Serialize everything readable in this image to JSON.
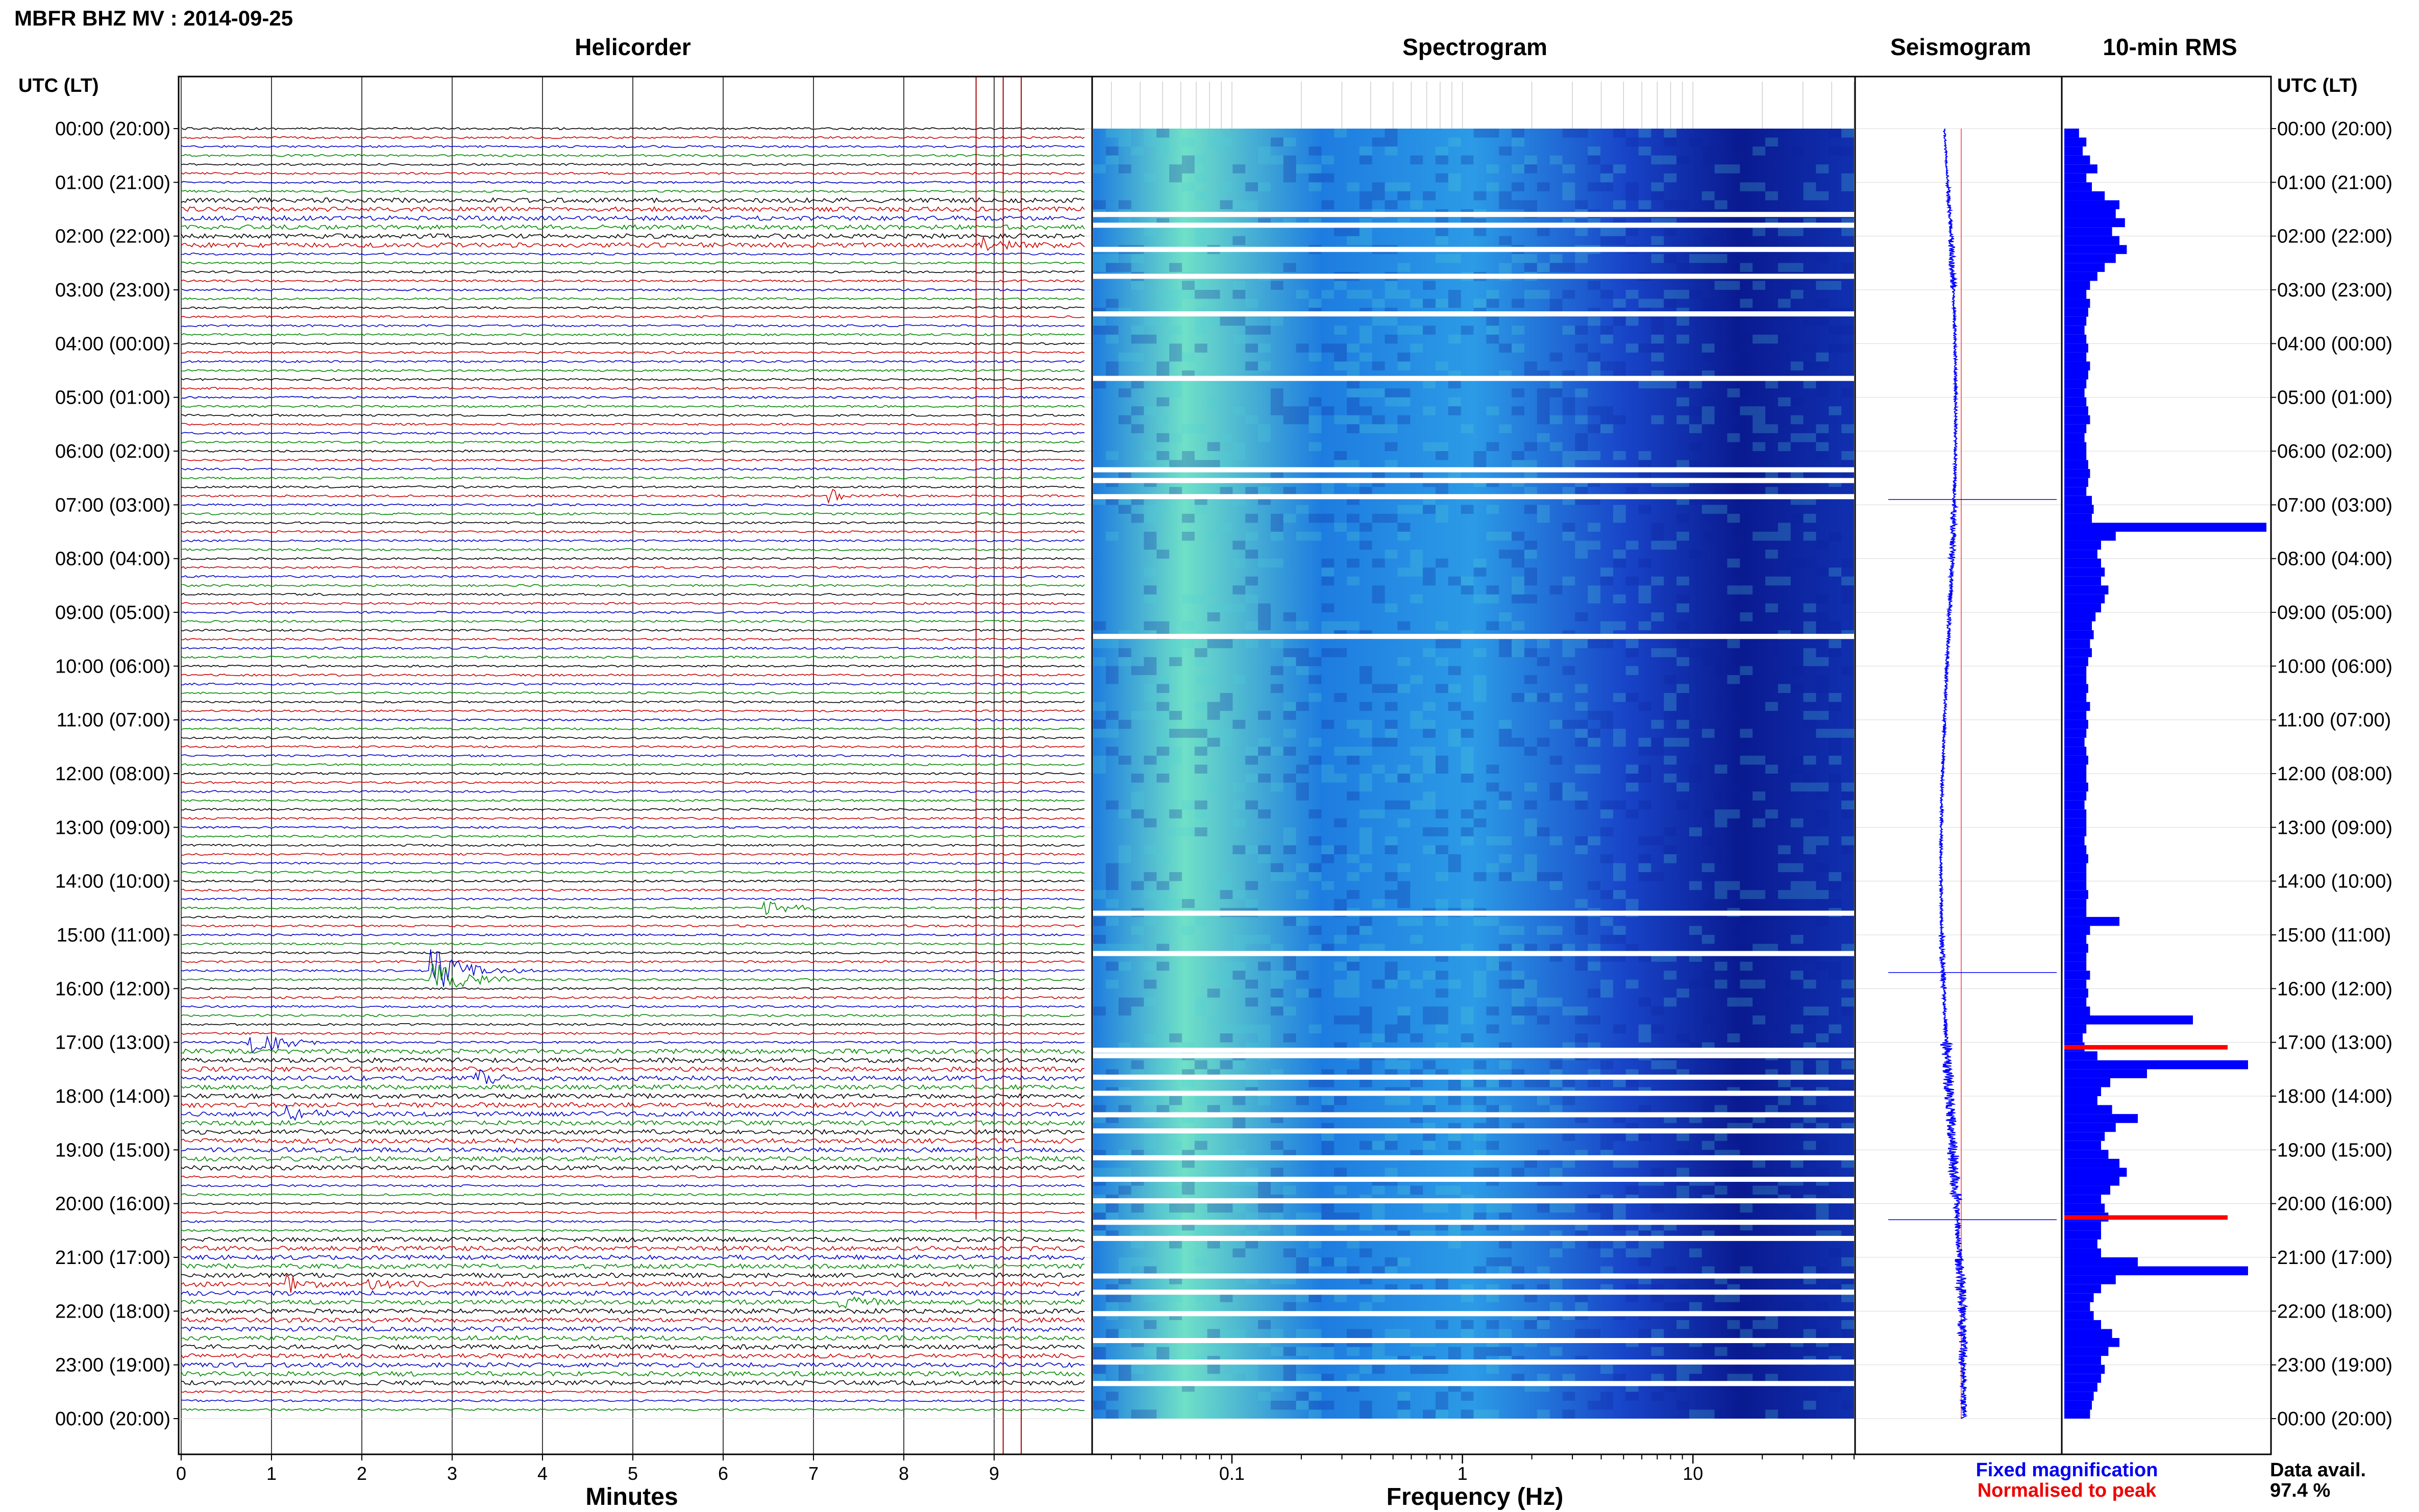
{
  "header": {
    "station_title": "MBFR BHZ MV : 2014-09-25"
  },
  "panels": {
    "helicorder": {
      "title": "Helicorder",
      "xlabel": "Minutes"
    },
    "spectrogram": {
      "title": "Spectrogram",
      "xlabel": "Frequency (Hz)"
    },
    "seismogram": {
      "title": "Seismogram"
    },
    "rms": {
      "title": "10-min RMS"
    }
  },
  "axis": {
    "left_header": "UTC (LT)",
    "right_header": "UTC (LT)",
    "time_labels": [
      "00:00 (20:00)",
      "01:00 (21:00)",
      "02:00 (22:00)",
      "03:00 (23:00)",
      "04:00 (00:00)",
      "05:00 (01:00)",
      "06:00 (02:00)",
      "07:00 (03:00)",
      "08:00 (04:00)",
      "09:00 (05:00)",
      "10:00 (06:00)",
      "11:00 (07:00)",
      "12:00 (08:00)",
      "13:00 (09:00)",
      "14:00 (10:00)",
      "15:00 (11:00)",
      "16:00 (12:00)",
      "17:00 (13:00)",
      "18:00 (14:00)",
      "19:00 (15:00)",
      "20:00 (16:00)",
      "21:00 (17:00)",
      "22:00 (18:00)",
      "23:00 (19:00)",
      "00:00 (20:00)"
    ]
  },
  "legend": {
    "fixed": "Fixed magnification",
    "normalised": "Normalised to peak",
    "fixed_color": "#0000ee",
    "normalised_color": "#ee0000"
  },
  "availability": {
    "label": "Data avail.",
    "value": "97.4 %"
  },
  "colors": {
    "trace_cycle": [
      "#000000",
      "#cc0000",
      "#0000cc",
      "#008800"
    ],
    "rms_bar": "#0000ff",
    "rms_peak": "#ff0000",
    "seismogram": "#0000ff",
    "seismogram_ref": "#ff6666",
    "spec_low": "#0a1a90",
    "spec_mid": "#1e7ce0",
    "spec_high": "#6fe0c8"
  },
  "chart_data": [
    {
      "type": "line",
      "name": "helicorder",
      "x_ticks": [
        0,
        1,
        2,
        3,
        4,
        5,
        6,
        7,
        8,
        9
      ],
      "xlim": [
        0,
        10
      ],
      "traces_per_hour": 6,
      "hours": 24,
      "events": [
        {
          "hour_offset": 2.12,
          "minute": 8.9,
          "amplitude": 1.5
        },
        {
          "hour_offset": 6.9,
          "minute": 7.2,
          "amplitude": 1.2
        },
        {
          "hour_offset": 14.45,
          "minute": 6.5,
          "amplitude": 1.4
        },
        {
          "hour_offset": 15.75,
          "minute": 2.8,
          "amplitude": 4.5
        },
        {
          "hour_offset": 17.05,
          "minute": 0.75,
          "amplitude": 3.5
        },
        {
          "hour_offset": 17.7,
          "minute": 3.3,
          "amplitude": 1.6
        },
        {
          "hour_offset": 18.4,
          "minute": 1.2,
          "amplitude": 1.4
        },
        {
          "hour_offset": 21.5,
          "minute": 1.2,
          "amplitude": 1.5
        },
        {
          "hour_offset": 21.5,
          "minute": 2.1,
          "amplitude": 1.5
        },
        {
          "hour_offset": 21.9,
          "minute": 7.3,
          "amplitude": 1.5
        }
      ],
      "markers_minute": [
        8.8,
        9.1,
        9.3
      ]
    },
    {
      "type": "heatmap",
      "name": "spectrogram",
      "x_scale": "log",
      "xlim": [
        0.025,
        50
      ],
      "x_ticks": [
        0.1,
        1,
        10
      ],
      "x_tick_labels": [
        "0.1",
        "1",
        "10"
      ],
      "gap_hours": [
        1.55,
        1.75,
        2.2,
        2.7,
        3.4,
        4.6,
        6.3,
        6.5,
        6.8,
        9.4,
        14.55,
        15.3,
        17.1,
        17.2,
        17.6,
        17.9,
        18.3,
        18.6,
        19.1,
        19.5,
        19.9,
        20.3,
        20.6,
        21.3,
        21.6,
        22.0,
        22.5,
        22.9,
        23.3
      ]
    },
    {
      "type": "line",
      "name": "seismogram",
      "drift_start": 0.0,
      "drift_end": 1.0,
      "noise_by_hour": [
        0.3,
        0.5,
        0.9,
        0.4,
        0.4,
        0.4,
        0.4,
        0.9,
        0.6,
        0.5,
        0.4,
        0.4,
        0.4,
        0.4,
        0.4,
        0.8,
        0.5,
        1.6,
        1.4,
        1.6,
        0.8,
        1.5,
        1.3,
        0.8
      ]
    },
    {
      "type": "bar",
      "name": "10-min RMS",
      "orientation": "horizontal",
      "values": [
        0.08,
        0.12,
        0.1,
        0.14,
        0.18,
        0.12,
        0.15,
        0.22,
        0.3,
        0.28,
        0.33,
        0.26,
        0.3,
        0.34,
        0.28,
        0.22,
        0.18,
        0.14,
        0.12,
        0.14,
        0.13,
        0.12,
        0.11,
        0.12,
        0.13,
        0.12,
        0.14,
        0.13,
        0.12,
        0.11,
        0.12,
        0.13,
        0.14,
        0.12,
        0.11,
        0.12,
        0.12,
        0.13,
        0.14,
        0.13,
        0.12,
        0.15,
        0.16,
        0.15,
        1.1,
        0.28,
        0.2,
        0.18,
        0.2,
        0.22,
        0.2,
        0.24,
        0.22,
        0.2,
        0.17,
        0.15,
        0.16,
        0.14,
        0.15,
        0.13,
        0.12,
        0.12,
        0.13,
        0.12,
        0.14,
        0.12,
        0.13,
        0.12,
        0.11,
        0.12,
        0.13,
        0.12,
        0.12,
        0.13,
        0.12,
        0.11,
        0.12,
        0.12,
        0.12,
        0.11,
        0.12,
        0.13,
        0.12,
        0.12,
        0.12,
        0.13,
        0.12,
        0.12,
        0.3,
        0.14,
        0.12,
        0.13,
        0.12,
        0.12,
        0.14,
        0.12,
        0.13,
        0.12,
        0.14,
        0.7,
        0.12,
        0.1,
        0.11,
        0.18,
        1.0,
        0.45,
        0.25,
        0.2,
        0.18,
        0.26,
        0.4,
        0.28,
        0.22,
        0.2,
        0.24,
        0.3,
        0.34,
        0.3,
        0.25,
        0.2,
        0.22,
        0.24,
        0.2,
        0.2,
        0.18,
        0.2,
        0.4,
        1.0,
        0.28,
        0.2,
        0.16,
        0.14,
        0.16,
        0.2,
        0.26,
        0.3,
        0.24,
        0.2,
        0.22,
        0.2,
        0.18,
        0.16,
        0.15,
        0.14
      ],
      "peak_rows": [
        102,
        121
      ]
    }
  ]
}
